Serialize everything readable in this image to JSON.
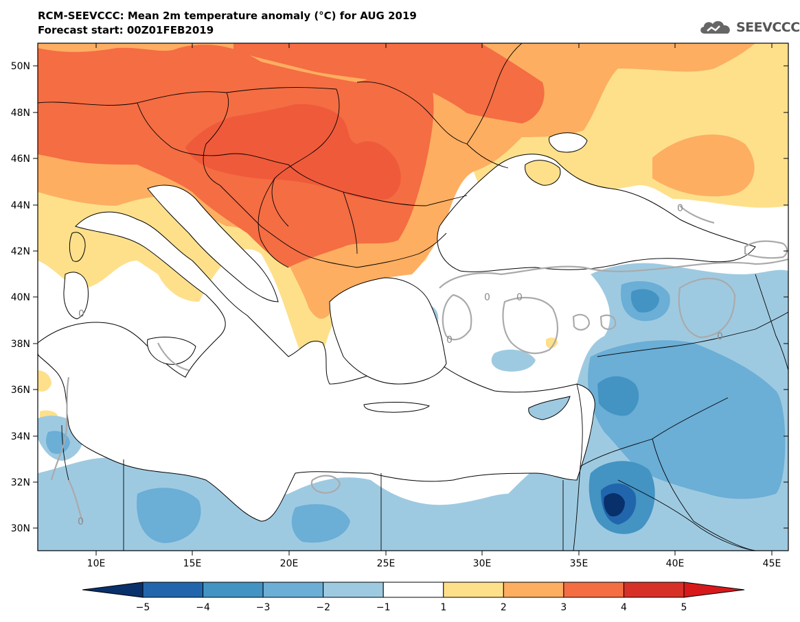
{
  "header": {
    "title": "RCM-SEEVCCC: Mean 2m temperature anomaly (°C) for AUG 2019",
    "subtitle": "Forecast start: 00Z01FEB2019"
  },
  "logo": {
    "text": "SEEVCCC",
    "icon": "cloud-icon"
  },
  "map": {
    "lat_labels": [
      "50N",
      "48N",
      "46N",
      "44N",
      "42N",
      "40N",
      "38N",
      "36N",
      "34N",
      "32N",
      "30N"
    ],
    "lon_labels": [
      "10E",
      "15E",
      "20E",
      "25E",
      "30E",
      "35E",
      "40E",
      "45E"
    ],
    "contour_label": "0"
  },
  "colorbar": {
    "labels": [
      "−5",
      "−4",
      "−3",
      "−2",
      "−1",
      "1",
      "2",
      "3",
      "4",
      "5"
    ],
    "colors": [
      "#08306b",
      "#2166ac",
      "#4393c3",
      "#6baed6",
      "#9ecae1",
      "#ffffff",
      "#fee08b",
      "#fdae61",
      "#f46d43",
      "#d73027"
    ],
    "low_color": "#08306b",
    "high_color": "#d7191c"
  }
}
